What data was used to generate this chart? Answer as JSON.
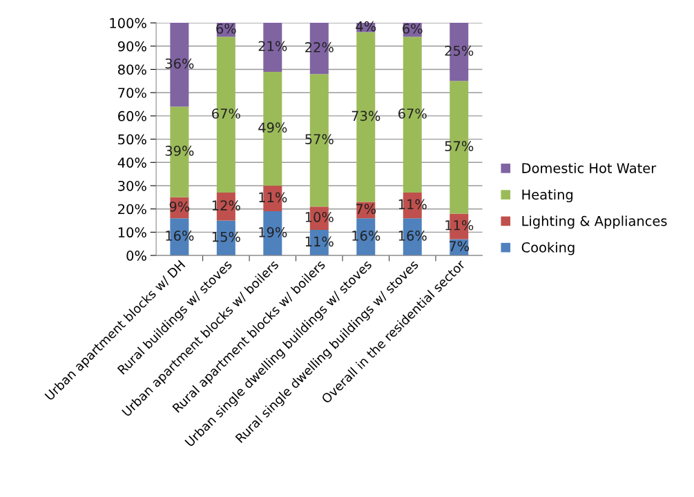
{
  "chart_data": {
    "type": "bar",
    "stacked": true,
    "categories": [
      "Urban apartment blocks w/ DH",
      "Rural buildings w/ stoves",
      "Urban apartment blocks w/ boilers",
      "Rural apartment blocks w/ boilers",
      "Urban single dwelling buildings w/ stoves",
      "Rural single dwelling buildings w/ stoves",
      "Overall in the residential sector"
    ],
    "series": [
      {
        "name": "Cooking",
        "color": "#4f81bd",
        "values": [
          16,
          15,
          19,
          11,
          16,
          16,
          7
        ],
        "value_labels": [
          "16%",
          "15%",
          "19%",
          "11%",
          "16%",
          "16%",
          "7%"
        ]
      },
      {
        "name": "Lighting & Appliances",
        "color": "#c0504d",
        "values": [
          9,
          12,
          11,
          10,
          7,
          11,
          11
        ],
        "value_labels": [
          "9%",
          "12%",
          "11%",
          "10%",
          "7%",
          "11%",
          "11%"
        ]
      },
      {
        "name": "Heating",
        "color": "#9bbb59",
        "values": [
          39,
          67,
          49,
          57,
          73,
          67,
          57
        ],
        "value_labels": [
          "39%",
          "67%",
          "49%",
          "57%",
          "73%",
          "67%",
          "57%"
        ]
      },
      {
        "name": "Domestic Hot Water",
        "color": "#8064a2",
        "values": [
          36,
          6,
          21,
          22,
          4,
          6,
          25
        ],
        "value_labels": [
          "36%",
          "6%",
          "21%",
          "22%",
          "4%",
          "6%",
          "25%"
        ]
      }
    ],
    "ylim": [
      0,
      100
    ],
    "yticks": [
      {
        "value": 0,
        "label": "0%"
      },
      {
        "value": 10,
        "label": "10%"
      },
      {
        "value": 20,
        "label": "20%"
      },
      {
        "value": 30,
        "label": "30%"
      },
      {
        "value": 40,
        "label": "40%"
      },
      {
        "value": 50,
        "label": "50%"
      },
      {
        "value": 60,
        "label": "60%"
      },
      {
        "value": 70,
        "label": "70%"
      },
      {
        "value": 80,
        "label": "80%"
      },
      {
        "value": 90,
        "label": "90%"
      },
      {
        "value": 100,
        "label": "100%"
      }
    ],
    "grid": "y",
    "legend": "right"
  }
}
